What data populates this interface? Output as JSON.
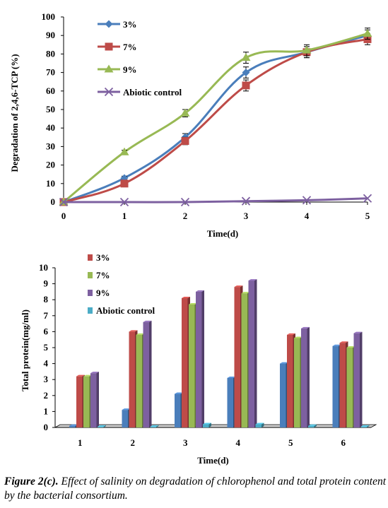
{
  "chart_data": [
    {
      "type": "line",
      "xlabel": "Time(d)",
      "ylabel": "Degradation of 2,4,6-TCP (%)",
      "xlim": [
        0,
        5
      ],
      "ylim": [
        0,
        100
      ],
      "x": [
        0,
        1,
        2,
        3,
        4,
        5
      ],
      "xticks": [
        "0",
        "1",
        "2",
        "3",
        "4",
        "5"
      ],
      "yticks": [
        "0",
        "10",
        "20",
        "30",
        "40",
        "50",
        "60",
        "70",
        "80",
        "90",
        "100"
      ],
      "legend_position": "top-left",
      "series": [
        {
          "name": "3%",
          "color": "#4a7ebb",
          "marker": "diamond",
          "values": [
            0,
            13,
            35,
            70,
            81,
            90
          ],
          "errors": [
            0,
            1,
            2,
            3,
            3,
            3
          ]
        },
        {
          "name": "7%",
          "color": "#be4b48",
          "marker": "square",
          "values": [
            0,
            10,
            33,
            63,
            81,
            88
          ],
          "errors": [
            0,
            1,
            2,
            3,
            3,
            3
          ]
        },
        {
          "name": "9%",
          "color": "#98b954",
          "marker": "triangle",
          "values": [
            0,
            27,
            48,
            78,
            82,
            91
          ],
          "errors": [
            0,
            1,
            2,
            3,
            3,
            3
          ]
        },
        {
          "name": "Abiotic control",
          "color": "#7d60a0",
          "marker": "x",
          "values": [
            0,
            0,
            0,
            0.5,
            1,
            2
          ],
          "errors": [
            0,
            0,
            0,
            0,
            0,
            0
          ]
        }
      ]
    },
    {
      "type": "bar",
      "xlabel": "Time(d)",
      "ylabel": "Total protein(mg/ml)",
      "ylim": [
        0,
        10
      ],
      "categories": [
        "1",
        "2",
        "3",
        "4",
        "5",
        "6"
      ],
      "yticks": [
        "0",
        "1",
        "2",
        "3",
        "4",
        "5",
        "6",
        "7",
        "8",
        "9",
        "10"
      ],
      "legend_position": "top-left",
      "series": [
        {
          "name": "3%",
          "color": "#be4b48",
          "values": [
            3.2,
            6.0,
            8.1,
            8.8,
            5.8,
            5.3
          ]
        },
        {
          "name": "7%",
          "color": "#98b954",
          "values": [
            3.2,
            5.8,
            7.7,
            8.4,
            5.6,
            5.0
          ]
        },
        {
          "name": "9%",
          "color": "#7d60a0",
          "values": [
            3.4,
            6.6,
            8.5,
            9.2,
            6.2,
            5.9
          ]
        },
        {
          "name": "Abiotic control",
          "color": "#4bacc6",
          "values": [
            0.05,
            0.05,
            0.2,
            0.2,
            0.1,
            0.05
          ]
        }
      ],
      "unlabeled_series": {
        "color": "#4a7ebb",
        "values": [
          0.1,
          1.1,
          2.1,
          3.1,
          4.0,
          5.1
        ]
      }
    }
  ],
  "caption": {
    "label": "Figure 2(c).",
    "text": " Effect of salinity on degradation of chlorophenol and total protein content by the bacterial consortium."
  }
}
